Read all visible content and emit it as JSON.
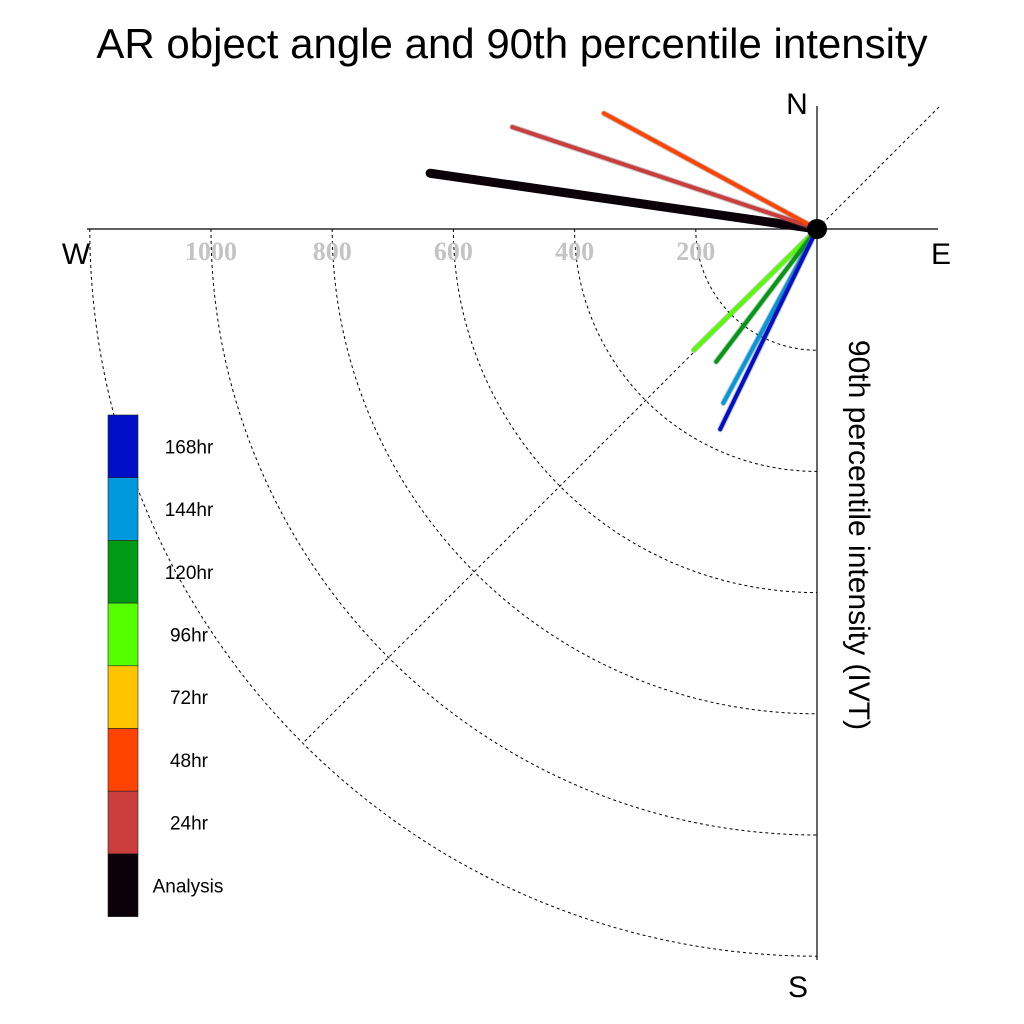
{
  "chart_data": {
    "type": "radial-vector",
    "title": "AR object angle and 90th percentile intensity",
    "ylabel": "90th percentile intensity (IVT)",
    "directions": {
      "north": "N",
      "south": "S",
      "east": "E",
      "west": "W"
    },
    "radial_ticks": [
      200,
      400,
      600,
      800,
      1000
    ],
    "radial_ticks_extended": [
      1200
    ],
    "rlim": [
      0,
      1200
    ],
    "series": [
      {
        "name": "Analysis",
        "color": "#0a0208",
        "angle_deg": -8.2,
        "magnitude": 645
      },
      {
        "name": "24hr",
        "color": "#cc3d3d",
        "angle_deg": -18.5,
        "magnitude": 530
      },
      {
        "name": "48hr",
        "color": "#ff4400",
        "angle_deg": -28.5,
        "magnitude": 400
      },
      {
        "name": "72hr",
        "color": "#ffc400",
        "angle_deg": null,
        "magnitude": null
      },
      {
        "name": "96hr",
        "color": "#55ff00",
        "angle_deg": 44.5,
        "magnitude": 285
      },
      {
        "name": "120hr",
        "color": "#009a14",
        "angle_deg": 52.8,
        "magnitude": 275
      },
      {
        "name": "144hr",
        "color": "#0099dd",
        "angle_deg": 61.7,
        "magnitude": 326
      },
      {
        "name": "168hr",
        "color": "#0010c8",
        "angle_deg": 64.2,
        "magnitude": 367
      }
    ],
    "legend_order": [
      "168hr",
      "144hr",
      "120hr",
      "96hr",
      "72hr",
      "48hr",
      "24hr",
      "Analysis"
    ],
    "legend_position": "left",
    "reference_diagonal": "northeast-southwest"
  }
}
